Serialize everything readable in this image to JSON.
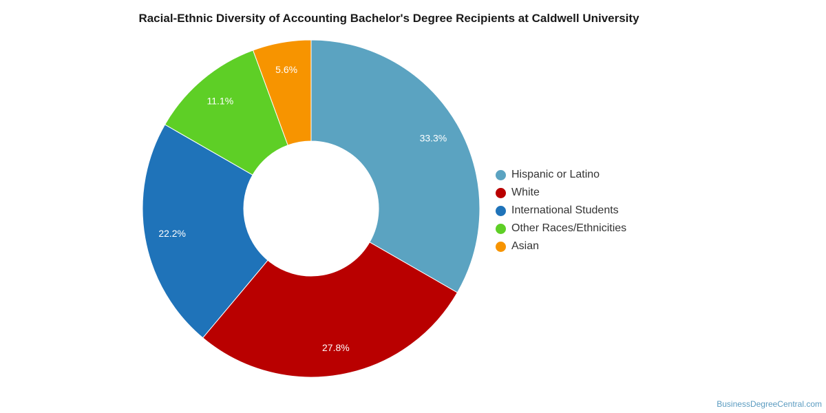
{
  "chart_data": {
    "type": "pie",
    "variant": "donut",
    "title": "Racial-Ethnic Diversity of Accounting Bachelor's Degree Recipients at Caldwell University",
    "slices": [
      {
        "label": "Hispanic or Latino",
        "value": 33.3,
        "display": "33.3%",
        "color": "#5ba3c1"
      },
      {
        "label": "White",
        "value": 27.8,
        "display": "27.8%",
        "color": "#b90000"
      },
      {
        "label": "International Students",
        "value": 22.2,
        "display": "22.2%",
        "color": "#1f73b9"
      },
      {
        "label": "Other Races/Ethnicities",
        "value": 11.1,
        "display": "11.1%",
        "color": "#5ecf26"
      },
      {
        "label": "Asian",
        "value": 5.6,
        "display": "5.6%",
        "color": "#f79400"
      }
    ],
    "legend_position": "right"
  },
  "footer": {
    "source": "BusinessDegreeCentral.com"
  }
}
